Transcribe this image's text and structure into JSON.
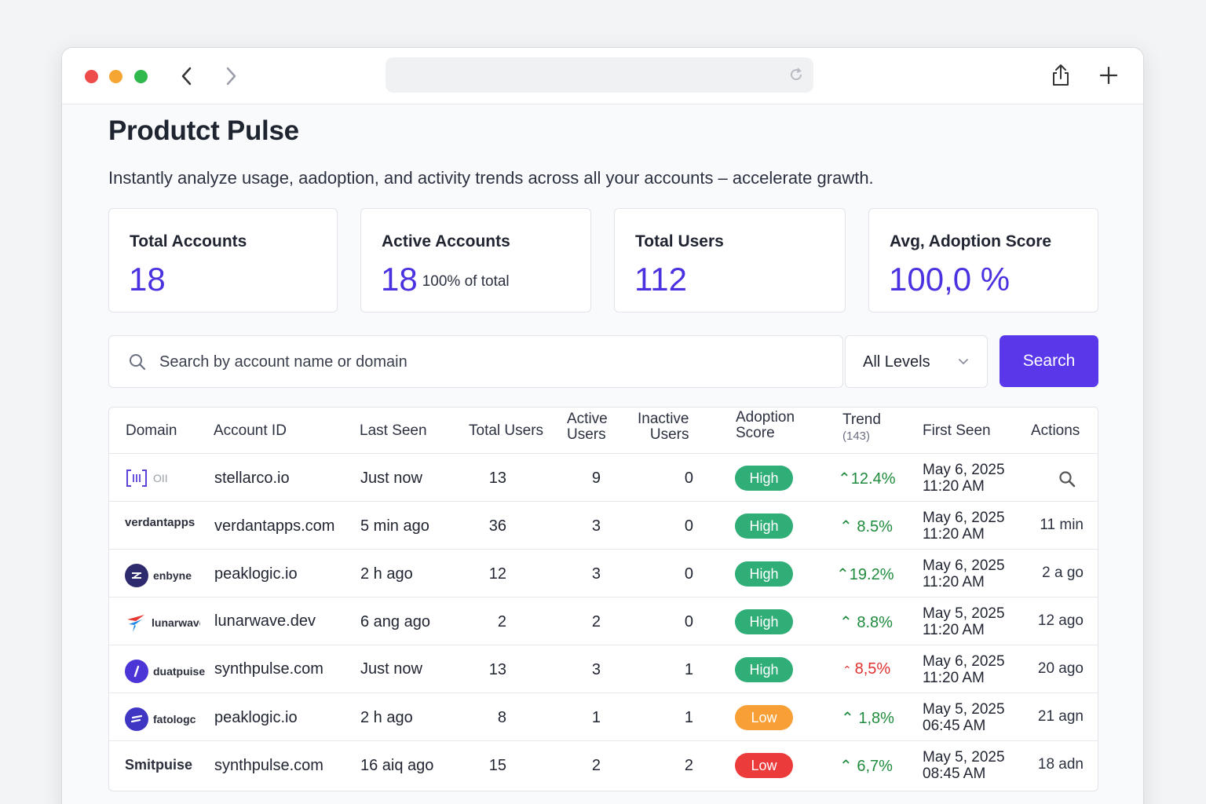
{
  "browser": {
    "url": ""
  },
  "page": {
    "title": "Produtct Pulse",
    "subtitle": "Instantly analyze usage, aadoption, and activity trends across all your accounts – accelerate grawth."
  },
  "stats": [
    {
      "label": "Total Accounts",
      "value": "18",
      "note": ""
    },
    {
      "label": "Active Accounts",
      "value": "18",
      "note": "100% of total"
    },
    {
      "label": "Total Users",
      "value": "112",
      "note": ""
    },
    {
      "label": "Avg, Adoption Score",
      "value": "100,0 %",
      "note": ""
    }
  ],
  "search": {
    "placeholder": "Search by account name or domain",
    "level": "All Levels",
    "button": "Search"
  },
  "table": {
    "headers": {
      "domain": "Domain",
      "account_id": "Account ID",
      "last_seen": "Last Seen",
      "total_users": "Total Users",
      "active_users_1": "Active",
      "active_users_2": "Users",
      "inactive_users_1": "Inactive",
      "inactive_users_2": "Users",
      "adoption_1": "Adoption",
      "adoption_2": "Score",
      "trend": "Trend",
      "trend_count": "(143)",
      "first_seen": "First Seen",
      "actions": "Actions"
    },
    "rows": [
      {
        "logo": "OII",
        "logo_icon": "brackets-logo-icon",
        "account": "stellarco.io",
        "last_seen": "Just now",
        "total": "13",
        "active": "9",
        "inactive": "0",
        "score": "High",
        "trend": "12.4%",
        "trend_dir": "up",
        "first_date": "May 6, 2025",
        "first_time": "11:20 AM",
        "action": ""
      },
      {
        "logo": "verdantapps",
        "logo_icon": "",
        "account": "verdantapps.com",
        "last_seen": "5 min ago",
        "total": "36",
        "active": "3",
        "inactive": "0",
        "score": "High",
        "trend": "8.5%",
        "trend_dir": "up",
        "first_date": "May 6, 2025",
        "first_time": "11:20 AM",
        "action": "11 min"
      },
      {
        "logo": "enbyne",
        "logo_icon": "enbyne-logo-icon",
        "account": "peaklogic.io",
        "last_seen": "2 h ago",
        "total": "12",
        "active": "3",
        "inactive": "0",
        "score": "High",
        "trend": "19.2%",
        "trend_dir": "up",
        "first_date": "May 6, 2025",
        "first_time": "11:20 AM",
        "action": "2 a go"
      },
      {
        "logo": "lunarwave",
        "logo_icon": "lunarwave-logo-icon",
        "account": "lunarwave.dev",
        "last_seen": "6 ang ago",
        "total": "2",
        "active": "2",
        "inactive": "0",
        "score": "High",
        "trend": "8.8%",
        "trend_dir": "up",
        "first_date": "May 5, 2025",
        "first_time": "11:20 AM",
        "action": "12 ago"
      },
      {
        "logo": "duatpuise",
        "logo_icon": "duatpuise-logo-icon",
        "account": "synthpulse.com",
        "last_seen": "Just now",
        "total": "13",
        "active": "3",
        "inactive": "1",
        "score": "High",
        "trend": "8,5%",
        "trend_dir": "down",
        "first_date": "May 6, 2025",
        "first_time": "11:20 AM",
        "action": "20 ago"
      },
      {
        "logo": "fatologc",
        "logo_icon": "fatologc-logo-icon",
        "account": "peaklogic.io",
        "last_seen": "2 h ago",
        "total": "8",
        "active": "1",
        "inactive": "1",
        "score": "Low",
        "trend": "1,8%",
        "trend_dir": "up",
        "first_date": "May 5, 2025",
        "first_time": "06:45 AM",
        "action": "21 agn"
      },
      {
        "logo": "Smitpuise",
        "logo_icon": "",
        "account": "synthpulse.com",
        "last_seen": "16 aiq ago",
        "total": "15",
        "active": "2",
        "inactive": "2",
        "score": "Low",
        "trend": "6,7%",
        "trend_dir": "up",
        "first_date": "May 5, 2025",
        "first_time": "08:45 AM",
        "action": "18 adn"
      }
    ]
  },
  "colors": {
    "accent": "#4a32e0",
    "high": "#2fae77",
    "low_orange": "#f8a035",
    "low_red": "#ec3b3b",
    "trend_up": "#1e8b3c",
    "trend_down": "#e0312f"
  }
}
